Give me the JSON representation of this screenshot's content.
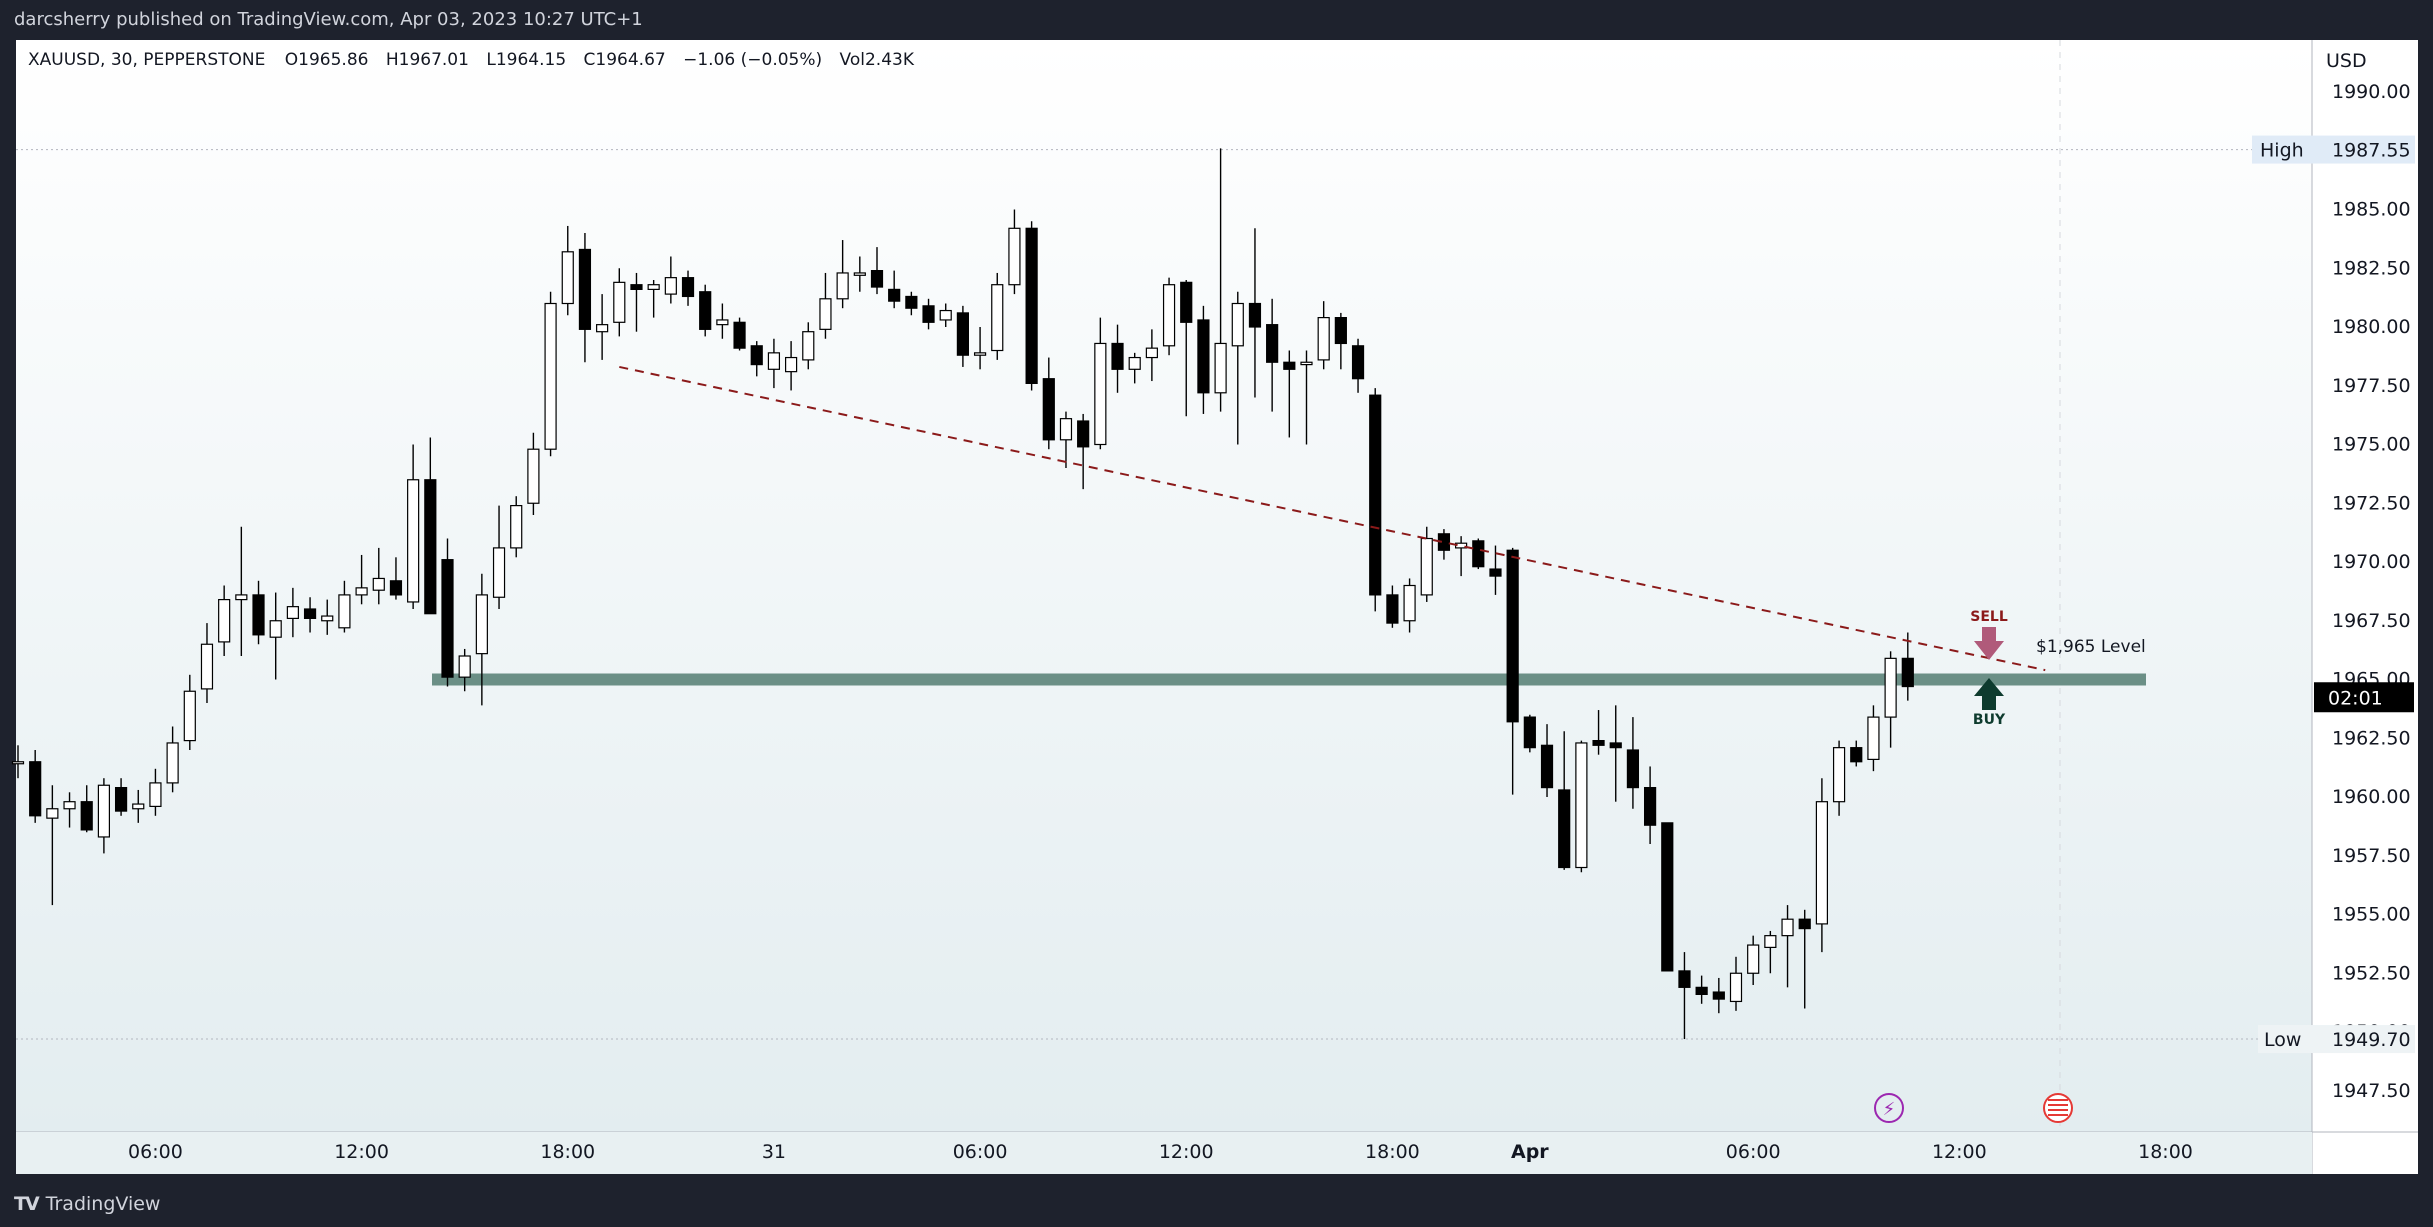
{
  "header": {
    "published_by": "darcsherry published on TradingView.com, Apr 03, 2023 10:27 UTC+1"
  },
  "legend": {
    "symbol": "XAUUSD, 30, PEPPERSTONE",
    "open": "O1965.86",
    "high": "H1967.01",
    "low": "L1964.15",
    "close": "C1964.67",
    "change": "−1.06 (−0.05%)",
    "volume": "Vol2.43K"
  },
  "price_axis": {
    "currency": "USD",
    "high_label": "High",
    "high_value": "1987.55",
    "low_label": "Low",
    "low_value": "1949.70",
    "countdown": "02:01"
  },
  "annotations": {
    "level_label": "$1,965 Level",
    "sell_label": "SELL",
    "buy_label": "BUY"
  },
  "footer": {
    "brand": "TradingView",
    "logo_glyph": "TV"
  },
  "colors": {
    "up_body": "#ffffff",
    "down_body": "#000000",
    "candle_outline": "#000000",
    "level_zone": "#6b8f86",
    "trendline": "#8b1a1a",
    "sell_arrow": "#b05a7a",
    "buy_arrow": "#0e3b2e",
    "high_low_line": "#b2b5be"
  },
  "chart_data": {
    "type": "candlestick",
    "symbol": "XAUUSD",
    "timeframe": "30",
    "ylim": [
      1945.8,
      1991.4
    ],
    "y_ticks": [
      1947.5,
      1950,
      1952.5,
      1955,
      1957.5,
      1960,
      1962.5,
      1965,
      1967.5,
      1970,
      1972.5,
      1975,
      1977.5,
      1980,
      1982.5,
      1985,
      1987.5,
      1990
    ],
    "y_tick_labels": [
      "1947.50",
      "1950.00",
      "1952.50",
      "1955.00",
      "1957.50",
      "1960.00",
      "1962.50",
      "1965.00",
      "1967.50",
      "1970.00",
      "1972.50",
      "1975.00",
      "1977.50",
      "1980.00",
      "1982.50",
      "1985.00",
      "1987.50",
      "1990.00"
    ],
    "x_ticks": [
      {
        "bar": 8,
        "label": "06:00"
      },
      {
        "bar": 20,
        "label": "12:00"
      },
      {
        "bar": 32,
        "label": "18:00"
      },
      {
        "bar": 44,
        "label": "31"
      },
      {
        "bar": 56,
        "label": "06:00"
      },
      {
        "bar": 68,
        "label": "12:00"
      },
      {
        "bar": 80,
        "label": "18:00"
      },
      {
        "bar": 88,
        "label": "Apr"
      },
      {
        "bar": 101,
        "label": "06:00"
      },
      {
        "bar": 113,
        "label": "12:00"
      },
      {
        "bar": 125,
        "label": "18:00"
      }
    ],
    "high_line": 1987.55,
    "low_line": 1949.7,
    "level": 1965,
    "trendline": {
      "from": {
        "bar": 35,
        "price": 1978.3
      },
      "to": {
        "bar": 118,
        "price": 1965.4
      }
    },
    "candles": [
      {
        "o": 1961.5,
        "h": 1962.2,
        "l": 1960.8,
        "c": 1961.5
      },
      {
        "o": 1961.5,
        "h": 1962.0,
        "l": 1958.9,
        "c": 1959.2
      },
      {
        "o": 1959.1,
        "h": 1960.5,
        "l": 1955.4,
        "c": 1959.5
      },
      {
        "o": 1959.5,
        "h": 1960.2,
        "l": 1958.7,
        "c": 1959.8
      },
      {
        "o": 1959.8,
        "h": 1960.5,
        "l": 1958.5,
        "c": 1958.6
      },
      {
        "o": 1958.3,
        "h": 1960.8,
        "l": 1957.6,
        "c": 1960.5
      },
      {
        "o": 1960.4,
        "h": 1960.8,
        "l": 1959.2,
        "c": 1959.4
      },
      {
        "o": 1959.5,
        "h": 1960.3,
        "l": 1958.9,
        "c": 1959.7
      },
      {
        "o": 1959.6,
        "h": 1961.2,
        "l": 1959.2,
        "c": 1960.6
      },
      {
        "o": 1960.6,
        "h": 1963.0,
        "l": 1960.2,
        "c": 1962.3
      },
      {
        "o": 1962.4,
        "h": 1965.2,
        "l": 1962.0,
        "c": 1964.5
      },
      {
        "o": 1964.6,
        "h": 1967.4,
        "l": 1964.0,
        "c": 1966.5
      },
      {
        "o": 1966.6,
        "h": 1969.0,
        "l": 1966.0,
        "c": 1968.4
      },
      {
        "o": 1968.4,
        "h": 1971.5,
        "l": 1966.0,
        "c": 1968.6
      },
      {
        "o": 1968.6,
        "h": 1969.2,
        "l": 1966.5,
        "c": 1966.9
      },
      {
        "o": 1966.8,
        "h": 1968.7,
        "l": 1965.0,
        "c": 1967.5
      },
      {
        "o": 1967.6,
        "h": 1968.9,
        "l": 1966.8,
        "c": 1968.1
      },
      {
        "o": 1968.0,
        "h": 1968.5,
        "l": 1967.0,
        "c": 1967.6
      },
      {
        "o": 1967.5,
        "h": 1968.4,
        "l": 1966.9,
        "c": 1967.7
      },
      {
        "o": 1967.2,
        "h": 1969.2,
        "l": 1967.0,
        "c": 1968.6
      },
      {
        "o": 1968.6,
        "h": 1970.3,
        "l": 1968.2,
        "c": 1968.9
      },
      {
        "o": 1968.8,
        "h": 1970.6,
        "l": 1968.2,
        "c": 1969.3
      },
      {
        "o": 1969.2,
        "h": 1970.2,
        "l": 1968.4,
        "c": 1968.6
      },
      {
        "o": 1968.3,
        "h": 1975.0,
        "l": 1968.0,
        "c": 1973.5
      },
      {
        "o": 1973.5,
        "h": 1975.3,
        "l": 1968.2,
        "c": 1967.8
      },
      {
        "o": 1970.1,
        "h": 1971.0,
        "l": 1964.7,
        "c": 1965.1
      },
      {
        "o": 1965.1,
        "h": 1966.3,
        "l": 1964.5,
        "c": 1966.0
      },
      {
        "o": 1966.1,
        "h": 1969.5,
        "l": 1963.9,
        "c": 1968.6
      },
      {
        "o": 1968.5,
        "h": 1972.4,
        "l": 1968.0,
        "c": 1970.6
      },
      {
        "o": 1970.6,
        "h": 1972.8,
        "l": 1970.2,
        "c": 1972.4
      },
      {
        "o": 1972.5,
        "h": 1975.5,
        "l": 1972.0,
        "c": 1974.8
      },
      {
        "o": 1974.8,
        "h": 1981.5,
        "l": 1974.5,
        "c": 1981.0
      },
      {
        "o": 1981.0,
        "h": 1984.3,
        "l": 1980.5,
        "c": 1983.2
      },
      {
        "o": 1983.3,
        "h": 1984.0,
        "l": 1978.5,
        "c": 1979.9
      },
      {
        "o": 1979.8,
        "h": 1981.4,
        "l": 1978.6,
        "c": 1980.1
      },
      {
        "o": 1980.2,
        "h": 1982.5,
        "l": 1979.6,
        "c": 1981.9
      },
      {
        "o": 1981.8,
        "h": 1982.3,
        "l": 1979.8,
        "c": 1981.6
      },
      {
        "o": 1981.6,
        "h": 1982.0,
        "l": 1980.4,
        "c": 1981.8
      },
      {
        "o": 1981.4,
        "h": 1983.0,
        "l": 1981.0,
        "c": 1982.1
      },
      {
        "o": 1982.1,
        "h": 1982.4,
        "l": 1980.9,
        "c": 1981.3
      },
      {
        "o": 1981.5,
        "h": 1981.8,
        "l": 1979.6,
        "c": 1979.9
      },
      {
        "o": 1980.1,
        "h": 1981.0,
        "l": 1979.5,
        "c": 1980.3
      },
      {
        "o": 1980.2,
        "h": 1980.4,
        "l": 1979.0,
        "c": 1979.1
      },
      {
        "o": 1979.2,
        "h": 1979.4,
        "l": 1977.9,
        "c": 1978.4
      },
      {
        "o": 1978.2,
        "h": 1979.5,
        "l": 1977.4,
        "c": 1978.9
      },
      {
        "o": 1978.1,
        "h": 1979.4,
        "l": 1977.3,
        "c": 1978.7
      },
      {
        "o": 1978.6,
        "h": 1980.2,
        "l": 1978.2,
        "c": 1979.8
      },
      {
        "o": 1979.9,
        "h": 1982.3,
        "l": 1979.5,
        "c": 1981.2
      },
      {
        "o": 1981.2,
        "h": 1983.7,
        "l": 1980.8,
        "c": 1982.3
      },
      {
        "o": 1982.2,
        "h": 1983.0,
        "l": 1981.5,
        "c": 1982.3
      },
      {
        "o": 1982.4,
        "h": 1983.4,
        "l": 1981.4,
        "c": 1981.7
      },
      {
        "o": 1981.6,
        "h": 1982.4,
        "l": 1980.8,
        "c": 1981.1
      },
      {
        "o": 1981.3,
        "h": 1981.5,
        "l": 1980.5,
        "c": 1980.8
      },
      {
        "o": 1980.9,
        "h": 1981.2,
        "l": 1979.9,
        "c": 1980.2
      },
      {
        "o": 1980.3,
        "h": 1981.0,
        "l": 1980.0,
        "c": 1980.7
      },
      {
        "o": 1980.6,
        "h": 1980.9,
        "l": 1978.3,
        "c": 1978.8
      },
      {
        "o": 1978.8,
        "h": 1980.0,
        "l": 1978.2,
        "c": 1978.9
      },
      {
        "o": 1979.0,
        "h": 1982.3,
        "l": 1978.6,
        "c": 1981.8
      },
      {
        "o": 1981.8,
        "h": 1985.0,
        "l": 1981.4,
        "c": 1984.2
      },
      {
        "o": 1984.2,
        "h": 1984.5,
        "l": 1977.3,
        "c": 1977.6
      },
      {
        "o": 1977.8,
        "h": 1978.7,
        "l": 1974.8,
        "c": 1975.2
      },
      {
        "o": 1975.2,
        "h": 1976.4,
        "l": 1974.0,
        "c": 1976.1
      },
      {
        "o": 1976.0,
        "h": 1976.3,
        "l": 1973.1,
        "c": 1974.9
      },
      {
        "o": 1975.0,
        "h": 1980.4,
        "l": 1974.8,
        "c": 1979.3
      },
      {
        "o": 1979.3,
        "h": 1980.1,
        "l": 1977.2,
        "c": 1978.2
      },
      {
        "o": 1978.2,
        "h": 1978.9,
        "l": 1977.6,
        "c": 1978.7
      },
      {
        "o": 1978.7,
        "h": 1979.9,
        "l": 1977.7,
        "c": 1979.1
      },
      {
        "o": 1979.2,
        "h": 1982.1,
        "l": 1978.8,
        "c": 1981.8
      },
      {
        "o": 1981.9,
        "h": 1982.0,
        "l": 1976.2,
        "c": 1980.2
      },
      {
        "o": 1980.3,
        "h": 1980.9,
        "l": 1976.3,
        "c": 1977.2
      },
      {
        "o": 1977.2,
        "h": 1987.6,
        "l": 1976.4,
        "c": 1979.3
      },
      {
        "o": 1979.2,
        "h": 1981.5,
        "l": 1975.0,
        "c": 1981.0
      },
      {
        "o": 1981.0,
        "h": 1984.2,
        "l": 1977.0,
        "c": 1980.0
      },
      {
        "o": 1980.1,
        "h": 1981.2,
        "l": 1976.4,
        "c": 1978.5
      },
      {
        "o": 1978.5,
        "h": 1979.0,
        "l": 1975.3,
        "c": 1978.2
      },
      {
        "o": 1978.4,
        "h": 1979.0,
        "l": 1975.0,
        "c": 1978.5
      },
      {
        "o": 1978.6,
        "h": 1981.1,
        "l": 1978.2,
        "c": 1980.4
      },
      {
        "o": 1980.4,
        "h": 1980.6,
        "l": 1978.2,
        "c": 1979.3
      },
      {
        "o": 1979.2,
        "h": 1979.5,
        "l": 1977.2,
        "c": 1977.8
      },
      {
        "o": 1977.1,
        "h": 1977.4,
        "l": 1967.9,
        "c": 1968.6
      },
      {
        "o": 1968.6,
        "h": 1969.0,
        "l": 1967.2,
        "c": 1967.4
      },
      {
        "o": 1967.5,
        "h": 1969.3,
        "l": 1967.0,
        "c": 1969.0
      },
      {
        "o": 1968.6,
        "h": 1971.5,
        "l": 1968.3,
        "c": 1971.0
      },
      {
        "o": 1971.2,
        "h": 1971.4,
        "l": 1970.1,
        "c": 1970.5
      },
      {
        "o": 1970.6,
        "h": 1971.1,
        "l": 1969.4,
        "c": 1970.8
      },
      {
        "o": 1970.9,
        "h": 1971.0,
        "l": 1969.7,
        "c": 1969.8
      },
      {
        "o": 1969.7,
        "h": 1970.7,
        "l": 1968.6,
        "c": 1969.4
      },
      {
        "o": 1970.5,
        "h": 1970.6,
        "l": 1960.1,
        "c": 1963.2
      },
      {
        "o": 1963.4,
        "h": 1963.5,
        "l": 1961.9,
        "c": 1962.1
      },
      {
        "o": 1962.2,
        "h": 1963.1,
        "l": 1960.0,
        "c": 1960.4
      },
      {
        "o": 1960.3,
        "h": 1962.8,
        "l": 1956.9,
        "c": 1957.0
      },
      {
        "o": 1957.0,
        "h": 1962.4,
        "l": 1956.8,
        "c": 1962.3
      },
      {
        "o": 1962.4,
        "h": 1963.7,
        "l": 1961.8,
        "c": 1962.2
      },
      {
        "o": 1962.3,
        "h": 1963.9,
        "l": 1959.8,
        "c": 1962.1
      },
      {
        "o": 1962.0,
        "h": 1963.4,
        "l": 1959.5,
        "c": 1960.4
      },
      {
        "o": 1960.4,
        "h": 1961.3,
        "l": 1958.0,
        "c": 1958.8
      },
      {
        "o": 1958.9,
        "h": 1958.9,
        "l": 1952.6,
        "c": 1952.6
      },
      {
        "o": 1952.6,
        "h": 1953.4,
        "l": 1949.7,
        "c": 1951.9
      },
      {
        "o": 1951.9,
        "h": 1952.4,
        "l": 1951.2,
        "c": 1951.6
      },
      {
        "o": 1951.7,
        "h": 1952.3,
        "l": 1950.8,
        "c": 1951.4
      },
      {
        "o": 1951.3,
        "h": 1953.2,
        "l": 1950.9,
        "c": 1952.5
      },
      {
        "o": 1952.5,
        "h": 1954.1,
        "l": 1952.0,
        "c": 1953.7
      },
      {
        "o": 1953.6,
        "h": 1954.3,
        "l": 1952.5,
        "c": 1954.1
      },
      {
        "o": 1954.1,
        "h": 1955.4,
        "l": 1951.9,
        "c": 1954.8
      },
      {
        "o": 1954.8,
        "h": 1955.2,
        "l": 1951.0,
        "c": 1954.4
      },
      {
        "o": 1954.6,
        "h": 1960.8,
        "l": 1953.4,
        "c": 1959.8
      },
      {
        "o": 1959.8,
        "h": 1962.4,
        "l": 1959.2,
        "c": 1962.1
      },
      {
        "o": 1962.1,
        "h": 1962.4,
        "l": 1961.3,
        "c": 1961.5
      },
      {
        "o": 1961.6,
        "h": 1963.9,
        "l": 1961.1,
        "c": 1963.4
      },
      {
        "o": 1963.4,
        "h": 1966.2,
        "l": 1962.1,
        "c": 1965.9
      },
      {
        "o": 1965.9,
        "h": 1967.0,
        "l": 1964.1,
        "c": 1964.7
      }
    ]
  }
}
